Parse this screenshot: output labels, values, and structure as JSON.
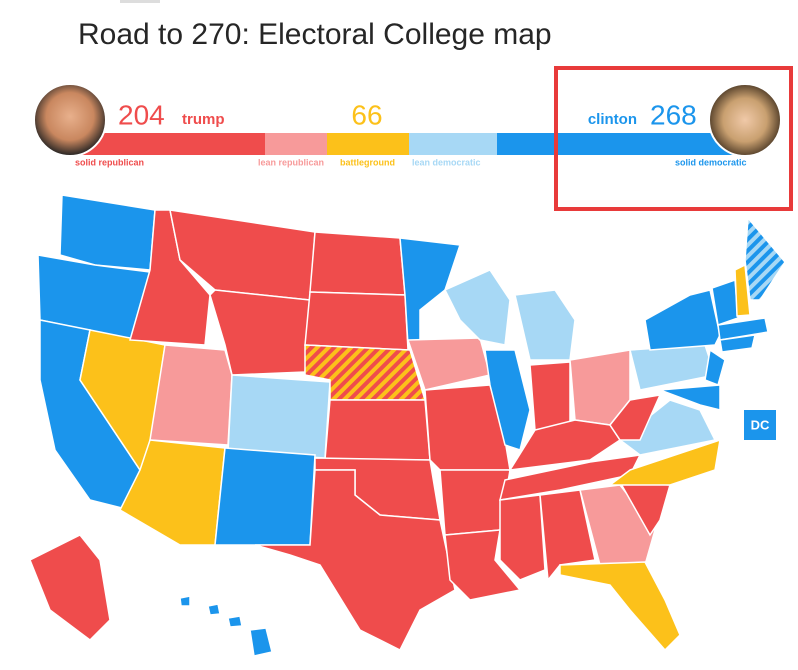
{
  "header": {
    "title": "Road to 270: Electoral College map"
  },
  "scoreboard": {
    "trump": {
      "votes": "204",
      "name": "trump"
    },
    "battleground": {
      "votes": "66"
    },
    "clinton": {
      "votes": "268",
      "name": "clinton"
    }
  },
  "legend": {
    "solid_republican": "solid republican",
    "lean_republican": "lean republican",
    "battleground": "battleground",
    "lean_democratic": "lean democratic",
    "solid_democratic": "solid democratic"
  },
  "map": {
    "dc_label": "DC"
  }
}
